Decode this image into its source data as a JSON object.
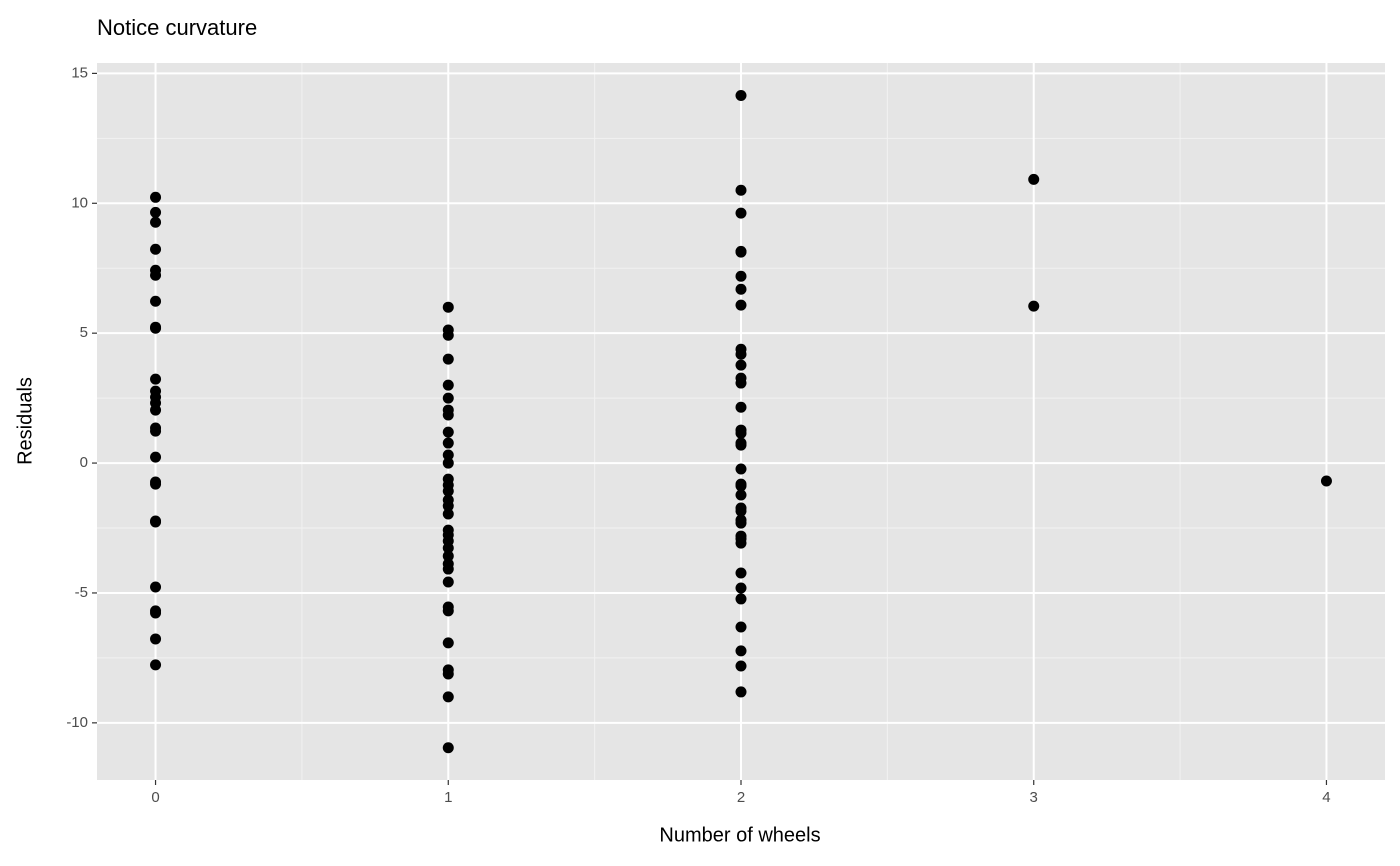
{
  "chart_data": {
    "type": "scatter",
    "title": "Notice curvature",
    "x_label": "Number of wheels",
    "y_label": "Residuals",
    "x": [
      0,
      0,
      0,
      0,
      0,
      0,
      0,
      0,
      0,
      0,
      0,
      0,
      0,
      0,
      0,
      0,
      0,
      0,
      0,
      0,
      0,
      0,
      0,
      0,
      0,
      0,
      1,
      1,
      1,
      1,
      1,
      1,
      1,
      1,
      1,
      1,
      1,
      1,
      1,
      1,
      1,
      1,
      1,
      1,
      1,
      1,
      1,
      1,
      1,
      1,
      1,
      1,
      1,
      1,
      1,
      1,
      1,
      1,
      1,
      2,
      2,
      2,
      2,
      2,
      2,
      2,
      2,
      2,
      2,
      2,
      2,
      2,
      2,
      2,
      2,
      2,
      2,
      2,
      2,
      2,
      2,
      2,
      2,
      2,
      2,
      2,
      2,
      2,
      2,
      2,
      2,
      2,
      2,
      2,
      2,
      3,
      3,
      4
    ],
    "y": [
      10.23,
      9.65,
      9.27,
      8.23,
      7.42,
      7.23,
      6.23,
      5.23,
      5.19,
      3.23,
      2.77,
      2.54,
      2.31,
      2.04,
      1.35,
      1.23,
      0.23,
      -0.73,
      -0.81,
      -2.23,
      -2.27,
      -4.77,
      -5.69,
      -5.77,
      -6.77,
      -7.77,
      6.0,
      5.12,
      4.92,
      4.0,
      3.0,
      2.5,
      2.04,
      1.85,
      1.19,
      0.77,
      0.31,
      0.0,
      -0.62,
      -0.85,
      -1.08,
      -1.42,
      -1.65,
      -1.96,
      -2.58,
      -2.77,
      -3.0,
      -3.27,
      -3.58,
      -3.88,
      -4.08,
      -4.58,
      -5.54,
      -5.69,
      -6.92,
      -7.96,
      -8.12,
      -9.0,
      -10.96,
      14.15,
      10.5,
      9.62,
      8.15,
      8.12,
      7.19,
      6.69,
      6.08,
      4.38,
      4.19,
      3.77,
      3.27,
      3.08,
      2.15,
      1.27,
      1.15,
      0.77,
      0.69,
      -0.23,
      -0.81,
      -0.88,
      -1.23,
      -1.73,
      -1.85,
      -2.19,
      -2.31,
      -2.81,
      -2.92,
      -3.08,
      -4.23,
      -4.81,
      -5.23,
      -6.31,
      -7.23,
      -7.81,
      -8.81,
      10.92,
      6.04,
      -0.69
    ],
    "color": "#000000",
    "xlim": [
      -0.2,
      4.2
    ],
    "ylim": [
      -12.2,
      15.4
    ],
    "xticks": [
      0,
      1,
      2,
      3,
      4
    ],
    "yticks": [
      -10,
      -5,
      0,
      5,
      10,
      15
    ],
    "grid": true
  }
}
